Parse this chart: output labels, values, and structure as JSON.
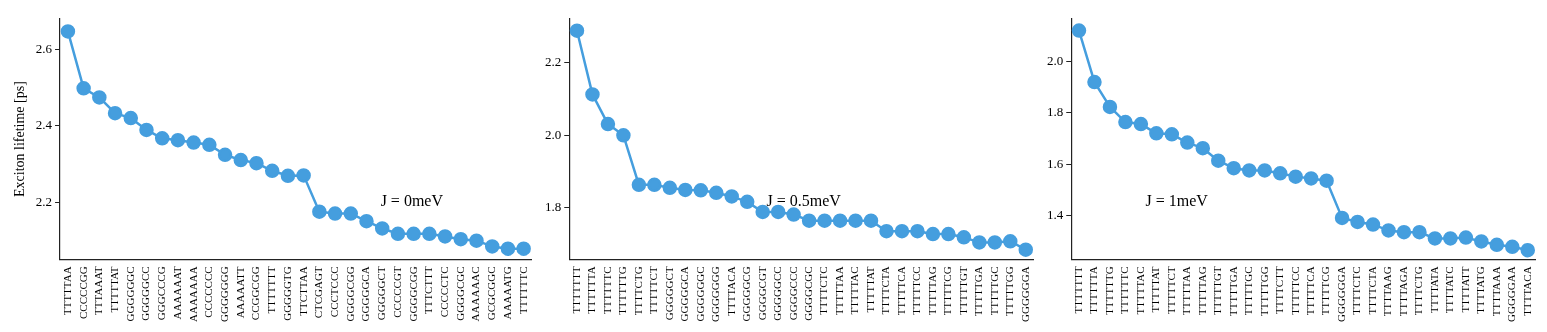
{
  "chart_data": [
    {
      "type": "line",
      "ylabel": "Exciton lifetime [ps]",
      "marker": "circle",
      "line_style": "solid",
      "grid": false,
      "legend": false,
      "ylim": [
        2.05,
        2.68
      ],
      "yticks": [
        2.2,
        2.4,
        2.6
      ],
      "annotations": [
        "J = 0meV"
      ],
      "categories": [
        "TTTTTAA",
        "CCCCCGG",
        "TTTAAAT",
        "TTTTTAT",
        "GGGGGGC",
        "GGGGGCC",
        "GGGCCCG",
        "AAAAAAT",
        "AAAAAAA",
        "CCCCCCC",
        "GGGGGGG",
        "AAAAATT",
        "CCGGCGG",
        "TTTTTTT",
        "GGGGGTG",
        "TTCTTAA",
        "CTCGAGT",
        "CCCTCCC",
        "GGGGCGG",
        "GGGGGCA",
        "GGGGGCT",
        "CCCCCGT",
        "GGGGCGG",
        "TTTCTTT",
        "CCCCCTC",
        "GGGGCGC",
        "AAAAAAC",
        "GCGCGGC",
        "AAAAATG",
        "TTTTTTC"
      ],
      "series": [
        {
          "color": "#459ede",
          "values": [
            2.647,
            2.498,
            2.474,
            2.433,
            2.42,
            2.389,
            2.367,
            2.362,
            2.356,
            2.35,
            2.324,
            2.31,
            2.302,
            2.282,
            2.269,
            2.27,
            2.175,
            2.17,
            2.17,
            2.15,
            2.131,
            2.117,
            2.117,
            2.117,
            2.11,
            2.103,
            2.099,
            2.084,
            2.078,
            2.078
          ]
        }
      ]
    },
    {
      "type": "line",
      "marker": "circle",
      "line_style": "solid",
      "grid": false,
      "legend": false,
      "ylim": [
        1.657,
        2.322
      ],
      "yticks": [
        1.8,
        {
          "value": 2.0,
          "label": "2.0"
        },
        2.2
      ],
      "annotations": [
        "J = 0.5meV"
      ],
      "categories": [
        "TTTTTTT",
        "TTTTTTA",
        "TTTTTTC",
        "TTTTTTG",
        "TTTTCTG",
        "TTTTTCT",
        "GGGGGCT",
        "GGGGGCA",
        "GGGGGGC",
        "GGGGGGG",
        "TTTTACA",
        "GGGGGCG",
        "GGGGCGT",
        "GGGGGCC",
        "GGGGCCC",
        "GGGGCGC",
        "TTTTCTC",
        "TTTTTAA",
        "TTTTTAC",
        "TTTTTAT",
        "TTTTCTA",
        "TTTTTCA",
        "TTTTTCC",
        "TTTTTAG",
        "TTTTTCG",
        "TTTTTGT",
        "TTTTTGA",
        "TTTTTGC",
        "TTTTTGG",
        "GGGGGGA"
      ],
      "series": [
        {
          "color": "#459ede",
          "values": [
            2.289,
            2.113,
            2.031,
            2.0,
            1.863,
            1.863,
            1.855,
            1.849,
            1.848,
            1.841,
            1.831,
            1.816,
            1.788,
            1.788,
            1.781,
            1.764,
            1.764,
            1.764,
            1.764,
            1.764,
            1.735,
            1.735,
            1.735,
            1.727,
            1.727,
            1.718,
            1.704,
            1.704,
            1.707,
            1.684
          ]
        }
      ]
    },
    {
      "type": "line",
      "marker": "circle",
      "line_style": "solid",
      "grid": false,
      "legend": false,
      "ylim": [
        1.228,
        2.167
      ],
      "yticks": [
        1.4,
        1.6,
        1.8,
        {
          "value": 2.0,
          "label": "2.0"
        }
      ],
      "annotations": [
        "J = 1meV"
      ],
      "categories": [
        "TTTTTTT",
        "TTTTTTA",
        "TTTTTTG",
        "TTTTTTC",
        "TTTTTAC",
        "TTTTTAT",
        "TTTTTCT",
        "TTTTTAA",
        "TTTTTAG",
        "TTTTTGT",
        "TTTTTGA",
        "TTTTTGC",
        "TTTTTGG",
        "TTTTCTT",
        "TTTTTCC",
        "TTTTTCA",
        "TTTTTCG",
        "GGGGGGA",
        "TTTTCTC",
        "TTTTCTA",
        "TTTTAAG",
        "TTTTAGA",
        "TTTTCTG",
        "TTTTATA",
        "TTTTATC",
        "TTTTATT",
        "TTTTATG",
        "TTTTAAA",
        "GGGGGAA",
        "TTTTACA"
      ],
      "series": [
        {
          "color": "#459ede",
          "values": [
            2.121,
            1.92,
            1.823,
            1.764,
            1.756,
            1.72,
            1.716,
            1.684,
            1.662,
            1.613,
            1.584,
            1.575,
            1.575,
            1.564,
            1.551,
            1.544,
            1.535,
            1.39,
            1.374,
            1.364,
            1.341,
            1.334,
            1.334,
            1.31,
            1.31,
            1.313,
            1.298,
            1.285,
            1.277,
            1.264
          ]
        }
      ]
    }
  ]
}
